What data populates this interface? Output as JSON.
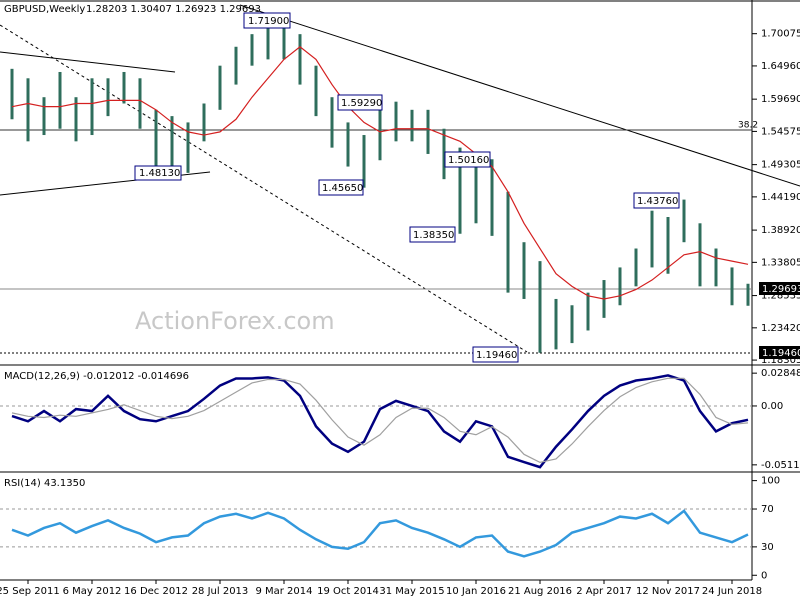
{
  "chart_data": [
    {
      "type": "ohlc",
      "title": "GBPUSD,Weekly",
      "subtitle": "1.28203 1.30407 1.26923 1.29693",
      "annotations": [
        "1.71900",
        "1.59290",
        "1.45650",
        "1.48130",
        "1.50160",
        "1.38350",
        "1.43760",
        "1.19460",
        "38.2",
        "1.29693",
        "1.19460"
      ],
      "watermark": "ActionForex.com",
      "ylim": [
        1.18,
        1.751
      ],
      "yticks": [
        1.70075,
        {
          "value": 1.6496,
          "label": "1.64960"
        },
        {
          "value": 1.5969,
          "label": "1.59690"
        },
        1.54575,
        1.49305,
        {
          "value": 1.4419,
          "label": "1.44190"
        },
        {
          "value": 1.3892,
          "label": "1.38920"
        },
        1.33805,
        1.28535,
        {
          "value": 1.2342,
          "label": "1.23420"
        },
        1.18305
      ],
      "series": [
        {
          "color": "#2f6e5c",
          "high": [
            1.645,
            1.63,
            1.6,
            1.64,
            1.6,
            1.63,
            1.63,
            1.64,
            1.63,
            1.58,
            1.57,
            1.56,
            1.59,
            1.65,
            1.68,
            1.7,
            1.72,
            1.719,
            1.7,
            1.65,
            1.6,
            1.56,
            1.54,
            1.58,
            1.5929,
            1.58,
            1.58,
            1.55,
            1.52,
            1.5,
            1.5016,
            1.45,
            1.37,
            1.34,
            1.28,
            1.27,
            1.29,
            1.31,
            1.33,
            1.36,
            1.42,
            1.41,
            1.4376,
            1.4,
            1.36,
            1.33,
            1.3041
          ],
          "low": [
            1.565,
            1.53,
            1.54,
            1.55,
            1.53,
            1.54,
            1.57,
            1.59,
            1.55,
            1.4813,
            1.49,
            1.48,
            1.53,
            1.58,
            1.62,
            1.65,
            1.66,
            1.66,
            1.62,
            1.57,
            1.52,
            1.49,
            1.4565,
            1.5,
            1.53,
            1.53,
            1.51,
            1.47,
            1.3835,
            1.4,
            1.38,
            1.29,
            1.28,
            1.1946,
            1.2,
            1.21,
            1.23,
            1.25,
            1.27,
            1.3,
            1.33,
            1.32,
            1.37,
            1.3,
            1.3,
            1.27,
            1.2692
          ]
        },
        {
          "color": "#d42020",
          "values": [
            1.585,
            1.59,
            1.585,
            1.585,
            1.59,
            1.59,
            1.595,
            1.595,
            1.595,
            1.58,
            1.56,
            1.545,
            1.54,
            1.545,
            1.565,
            1.6,
            1.63,
            1.66,
            1.68,
            1.66,
            1.62,
            1.585,
            1.56,
            1.545,
            1.55,
            1.55,
            1.55,
            1.54,
            1.53,
            1.51,
            1.49,
            1.45,
            1.4,
            1.36,
            1.32,
            1.3,
            1.285,
            1.28,
            1.285,
            1.295,
            1.31,
            1.33,
            1.35,
            1.355,
            1.345,
            1.34,
            1.335
          ]
        }
      ]
    },
    {
      "type": "line",
      "title": "MACD(12,26,9) -0.012012 -0.014696",
      "ylim": [
        -0.0556,
        0.0347
      ],
      "yticks": [
        0.028489,
        {
          "value": 0,
          "label": "0.00"
        },
        -0.051125
      ],
      "series": [
        {
          "color": "#000080",
          "values": [
            -0.0088,
            -0.0133,
            -0.0044,
            -0.0133,
            -0.0027,
            -0.0044,
            0.0088,
            -0.0044,
            -0.0115,
            -0.0133,
            -0.0088,
            -0.0044,
            0.0062,
            0.0177,
            0.0239,
            0.0239,
            0.0248,
            0.0221,
            0.0088,
            -0.0177,
            -0.0327,
            -0.0398,
            -0.031,
            -0.0027,
            0.0044,
            0,
            -0.0044,
            -0.0221,
            -0.031,
            -0.0133,
            -0.0177,
            -0.0442,
            -0.0487,
            -0.0531,
            -0.0354,
            -0.0204,
            -0.0044,
            0.0088,
            0.0177,
            0.0221,
            0.0239,
            0.0265,
            0.0221,
            -0.0044,
            -0.0221,
            -0.015,
            -0.012
          ]
        },
        {
          "color": "#a0a0a0",
          "values": [
            -0.006,
            -0.009,
            -0.01,
            -0.008,
            -0.009,
            -0.006,
            -0.003,
            0.001,
            -0.004,
            -0.009,
            -0.011,
            -0.009,
            -0.004,
            0.004,
            0.012,
            0.02,
            0.023,
            0.023,
            0.019,
            0.005,
            -0.012,
            -0.027,
            -0.034,
            -0.025,
            -0.01,
            -0.002,
            -0.002,
            -0.01,
            -0.022,
            -0.025,
            -0.018,
            -0.027,
            -0.042,
            -0.049,
            -0.046,
            -0.033,
            -0.018,
            -0.004,
            0.008,
            0.016,
            0.021,
            0.024,
            0.024,
            0.01,
            -0.01,
            -0.016,
            -0.0147
          ]
        }
      ]
    },
    {
      "type": "line",
      "title": "RSI(14) 43.1350",
      "ylim": [
        -5,
        107
      ],
      "yticks": [
        100,
        70,
        30,
        0
      ],
      "categories": [
        null,
        "25 Sep 2011",
        null,
        null,
        null,
        "6 May 2012",
        null,
        null,
        null,
        "16 Dec 2012",
        null,
        null,
        null,
        "28 Jul 2013",
        null,
        null,
        null,
        "9 Mar 2014",
        null,
        null,
        null,
        "19 Oct 2014",
        null,
        null,
        null,
        "31 May 2015",
        null,
        null,
        null,
        "10 Jan 2016",
        null,
        null,
        null,
        "21 Aug 2016",
        null,
        null,
        null,
        "2 Apr 2017",
        null,
        null,
        null,
        "12 Nov 2017",
        null,
        null,
        null,
        "24 Jun 2018",
        null
      ],
      "series": [
        {
          "color": "#3399dd",
          "values": [
            48,
            42,
            50,
            55,
            45,
            52,
            58,
            50,
            44,
            35,
            40,
            42,
            55,
            62,
            65,
            60,
            66,
            60,
            48,
            38,
            30,
            28,
            35,
            55,
            58,
            50,
            45,
            38,
            30,
            40,
            42,
            25,
            20,
            25,
            32,
            45,
            50,
            55,
            62,
            60,
            65,
            55,
            68,
            45,
            40,
            35,
            43.135
          ]
        }
      ]
    }
  ]
}
